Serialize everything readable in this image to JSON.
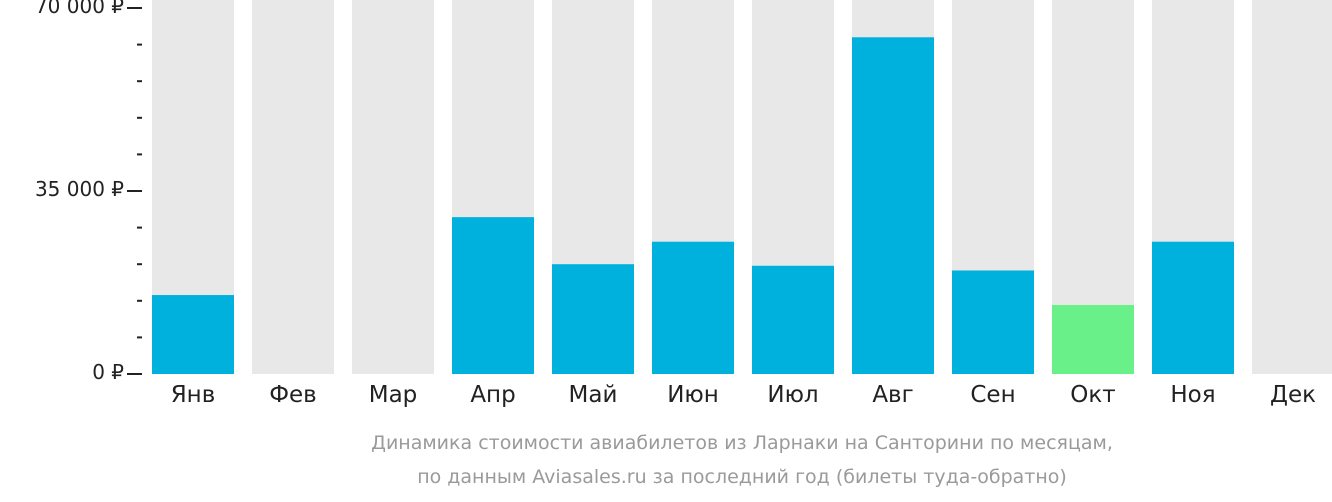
{
  "chart_data": {
    "type": "bar",
    "categories": [
      "Янв",
      "Фев",
      "Мар",
      "Апр",
      "Май",
      "Июн",
      "Июл",
      "Авг",
      "Сен",
      "Окт",
      "Ноя",
      "Дек"
    ],
    "values": [
      15100,
      0,
      0,
      30000,
      21000,
      25300,
      20700,
      64400,
      19800,
      13200,
      25300,
      0
    ],
    "ylim": [
      0,
      70000
    ],
    "yticks": [
      {
        "value": 0,
        "label": "0 ₽"
      },
      {
        "value": 35000,
        "label": "35 000 ₽"
      },
      {
        "value": 70000,
        "label": "70 000 ₽"
      }
    ],
    "minor_tick_step": 7000,
    "highlight_index": 9,
    "grid": false
  },
  "colors": {
    "bar": "#00b1dd",
    "bar_highlight": "#6af089",
    "bar_background": "#e8e8e8",
    "axis": "#222222",
    "caption": "#9a9a9a"
  },
  "caption": {
    "line1": "Динамика стоимости авиабилетов из Ларнаки на Санторини по месяцам,",
    "line2": "по данным Aviasales.ru за последний год (билеты туда-обратно)"
  }
}
